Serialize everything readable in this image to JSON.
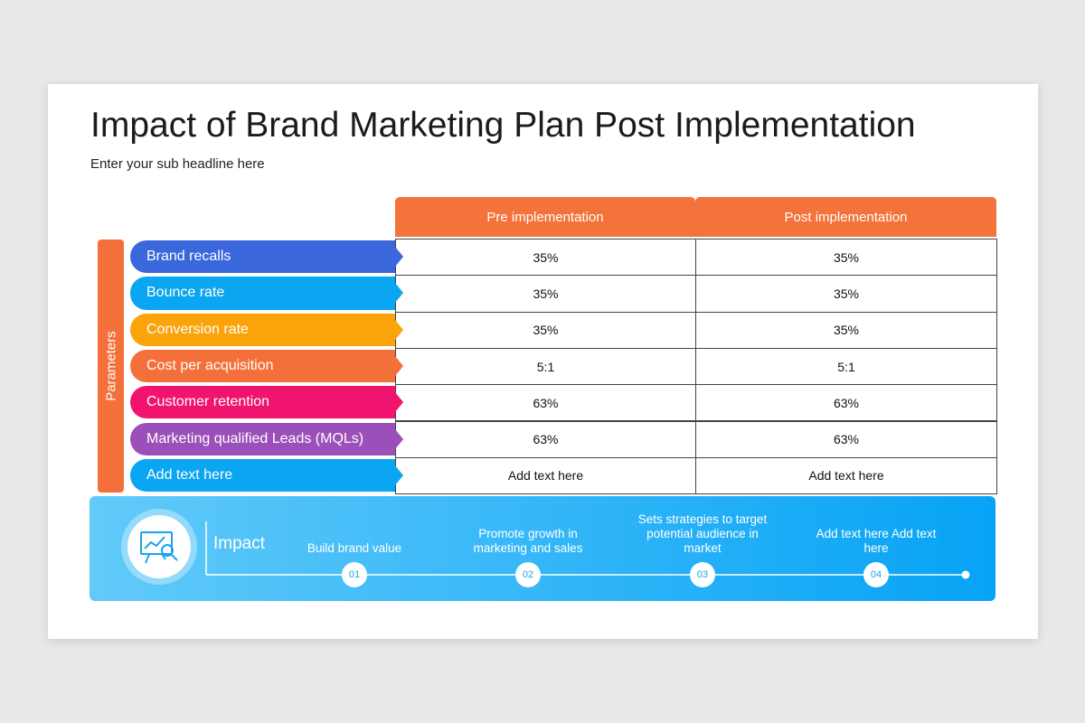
{
  "header": {
    "title": "Impact of Brand Marketing Plan Post Implementation",
    "subtitle": "Enter your sub headline here"
  },
  "table": {
    "side_label": "Parameters",
    "columns": [
      "Pre implementation",
      "Post implementation"
    ],
    "rows": [
      [
        "Brand recalls",
        "35%",
        "35%"
      ],
      [
        "Bounce rate",
        "35%",
        "35%"
      ],
      [
        "Conversion rate",
        "35%",
        "35%"
      ],
      [
        "Cost per acquisition",
        "5:1",
        "5:1"
      ],
      [
        "Customer retention",
        "63%",
        "63%"
      ],
      [
        "Marketing qualified Leads (MQLs)",
        "63%",
        "63%"
      ],
      [
        "Add text here",
        "Add text here",
        "Add text here"
      ]
    ],
    "row_colors": [
      "#3a67dc",
      "#0ba6f1",
      "#fba30b",
      "#f4703a",
      "#f0146e",
      "#9b4fb9",
      "#0ba6f1"
    ]
  },
  "impact": {
    "label": "Impact",
    "steps": [
      {
        "number": "01",
        "text": "Build brand value"
      },
      {
        "number": "02",
        "text": "Promote growth in marketing and sales"
      },
      {
        "number": "03",
        "text": "Sets strategies to target potential audience in market"
      },
      {
        "number": "04",
        "text": "Add text here Add text here"
      }
    ]
  }
}
